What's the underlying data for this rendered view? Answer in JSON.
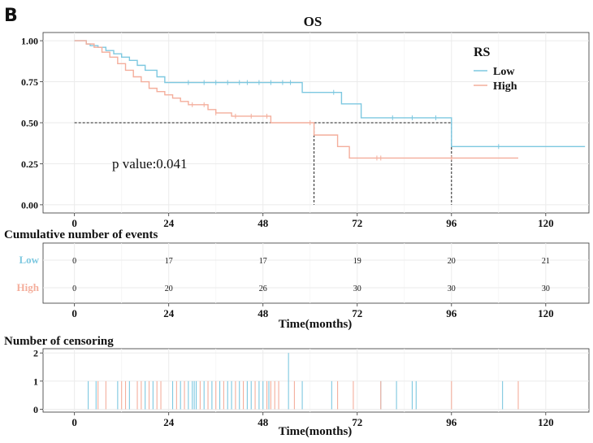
{
  "panel_label": "B",
  "colors": {
    "low": "#7dc8e0",
    "high": "#f4ae9c",
    "grid": "#ebebeb",
    "axis": "#333333"
  },
  "chart_data": [
    {
      "type": "line",
      "title": "OS",
      "xlabel": "",
      "ylabel": "",
      "xlim": [
        -8,
        131
      ],
      "ylim": [
        -0.05,
        1.05
      ],
      "xticks": [
        "0",
        "24",
        "48",
        "72",
        "96",
        "120"
      ],
      "yticks": [
        "0.00",
        "0.25",
        "0.50",
        "0.75",
        "1.00"
      ],
      "legend": {
        "title": "RS",
        "position": "top-right",
        "entries": [
          "Low",
          "High"
        ]
      },
      "annotation": "p value:0.041",
      "median_lines": {
        "survival": 0.5,
        "times": [
          61,
          96
        ]
      },
      "series": [
        {
          "name": "Low",
          "x": [
            0,
            3,
            4,
            6,
            8,
            10,
            12,
            14,
            16,
            18,
            21,
            23,
            58,
            63,
            68,
            73,
            96,
            130
          ],
          "y": [
            1.0,
            0.98,
            0.97,
            0.96,
            0.94,
            0.92,
            0.9,
            0.88,
            0.85,
            0.82,
            0.78,
            0.745,
            0.685,
            0.685,
            0.615,
            0.53,
            0.355,
            0.355
          ],
          "censor_times": [
            29,
            33,
            36,
            39,
            42,
            44,
            47,
            50,
            53,
            55,
            66,
            81,
            86,
            92,
            108
          ]
        },
        {
          "name": "High",
          "x": [
            0,
            3,
            5,
            7,
            9,
            11,
            13,
            15,
            17,
            19,
            21,
            23,
            25,
            27,
            29,
            34,
            36,
            40,
            44,
            50,
            56,
            61,
            65,
            67,
            70,
            113
          ],
          "y": [
            1.0,
            0.98,
            0.96,
            0.93,
            0.9,
            0.86,
            0.82,
            0.78,
            0.75,
            0.71,
            0.69,
            0.67,
            0.65,
            0.63,
            0.61,
            0.58,
            0.56,
            0.54,
            0.54,
            0.5,
            0.5,
            0.425,
            0.425,
            0.355,
            0.285,
            0.285
          ],
          "censor_times": [
            30,
            33,
            36,
            41,
            45,
            49,
            60,
            77,
            78,
            96
          ]
        }
      ]
    },
    {
      "type": "table",
      "title": "Cumulative number of events",
      "xlabel": "Time(months)",
      "xticks": [
        "0",
        "24",
        "48",
        "72",
        "96",
        "120"
      ],
      "rows": [
        {
          "name": "Low",
          "values": [
            "0",
            "17",
            "17",
            "19",
            "20",
            "21"
          ]
        },
        {
          "name": "High",
          "values": [
            "0",
            "20",
            "26",
            "30",
            "30",
            "30"
          ]
        }
      ]
    },
    {
      "type": "bar",
      "title": "Number of censoring",
      "xlabel": "Time(months)",
      "xticks": [
        "0",
        "24",
        "48",
        "72",
        "96",
        "120"
      ],
      "yticks": [
        "0",
        "1",
        "2"
      ],
      "series": [
        {
          "name": "Low",
          "x": [
            3.5,
            5.5,
            11,
            14,
            18,
            20,
            25,
            27,
            29,
            30,
            30.5,
            31,
            33,
            35,
            37,
            39,
            40,
            42,
            44,
            45,
            47,
            48,
            49.5,
            54.5,
            58,
            65.5,
            78,
            82,
            86,
            87,
            109
          ],
          "values": [
            1,
            1,
            1,
            1,
            1,
            1,
            1,
            1,
            1,
            1,
            1,
            1,
            1,
            1,
            1,
            1,
            1,
            1,
            1,
            1,
            1,
            1,
            1,
            2,
            1,
            1,
            1,
            1,
            1,
            1,
            1
          ]
        },
        {
          "name": "High",
          "x": [
            6,
            8,
            12,
            13,
            16,
            17,
            19,
            21,
            22,
            26,
            28,
            32,
            34,
            36,
            38,
            41,
            43,
            46,
            49,
            50,
            51,
            52,
            56,
            67,
            71,
            78,
            96,
            113
          ],
          "values": [
            1,
            1,
            1,
            1,
            1,
            1,
            1,
            1,
            1,
            1,
            1,
            1,
            1,
            1,
            1,
            1,
            1,
            1,
            1,
            1,
            1,
            1,
            1,
            1,
            1,
            1,
            1,
            1
          ]
        }
      ]
    }
  ]
}
